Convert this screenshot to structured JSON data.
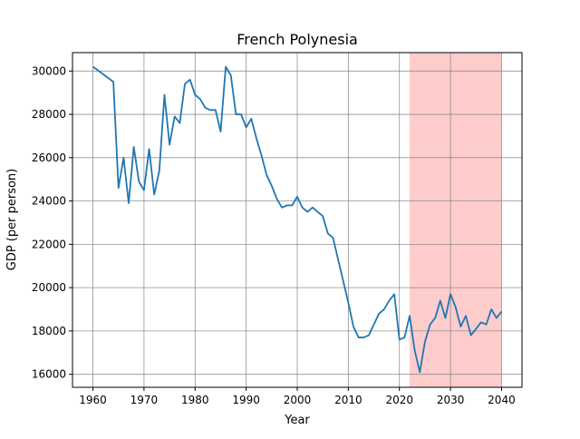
{
  "chart_data": {
    "type": "line",
    "title": "French Polynesia",
    "xlabel": "Year",
    "ylabel": "GDP (per person)",
    "xlim": [
      1956,
      2044
    ],
    "ylim": [
      15400,
      30850
    ],
    "xticks": [
      1960,
      1970,
      1980,
      1990,
      2000,
      2010,
      2020,
      2030,
      2040
    ],
    "yticks": [
      16000,
      18000,
      20000,
      22000,
      24000,
      26000,
      28000,
      30000
    ],
    "xtick_labels": [
      "1960",
      "1970",
      "1980",
      "1990",
      "2000",
      "2010",
      "2020",
      "2030",
      "2040"
    ],
    "ytick_labels": [
      "16000",
      "18000",
      "20000",
      "22000",
      "24000",
      "26000",
      "28000",
      "30000"
    ],
    "grid": true,
    "shaded_region": {
      "x_start": 2022,
      "x_end": 2040,
      "color": "#ffcccc"
    },
    "series": [
      {
        "color": "#1f77b4",
        "x": [
          1960,
          1964,
          1965,
          1966,
          1967,
          1968,
          1969,
          1970,
          1971,
          1972,
          1973,
          1974,
          1975,
          1976,
          1977,
          1978,
          1979,
          1980,
          1981,
          1982,
          1983,
          1984,
          1985,
          1986,
          1987,
          1988,
          1989,
          1990,
          1991,
          1992,
          1993,
          1994,
          1995,
          1996,
          1997,
          1998,
          1999,
          2000,
          2001,
          2002,
          2003,
          2004,
          2005,
          2006,
          2007,
          2008,
          2009,
          2010,
          2011,
          2012,
          2013,
          2014,
          2015,
          2016,
          2017,
          2018,
          2019,
          2020,
          2021,
          2022,
          2023,
          2024,
          2025,
          2026,
          2027,
          2028,
          2029,
          2030,
          2031,
          2032,
          2033,
          2034,
          2035,
          2036,
          2037,
          2038,
          2039,
          2040
        ],
        "y": [
          30200,
          29500,
          24600,
          26000,
          23900,
          26500,
          24900,
          24500,
          26400,
          24300,
          25400,
          28900,
          26600,
          27900,
          27600,
          29400,
          29600,
          28900,
          28700,
          28300,
          28200,
          28200,
          27200,
          30200,
          29800,
          28000,
          28000,
          27400,
          27800,
          26900,
          26100,
          25200,
          24700,
          24100,
          23700,
          23800,
          23800,
          24200,
          23700,
          23500,
          23700,
          23500,
          23300,
          22500,
          22300,
          21300,
          20300,
          19300,
          18200,
          17700,
          17700,
          17800,
          18300,
          18800,
          19000,
          19400,
          19700,
          17600,
          17700,
          18700,
          17100,
          16100,
          17500,
          18300,
          18600,
          19400,
          18600,
          19700,
          19100,
          18200,
          18700,
          17800,
          18100,
          18400,
          18300,
          19000,
          18600,
          18900
        ]
      }
    ]
  }
}
